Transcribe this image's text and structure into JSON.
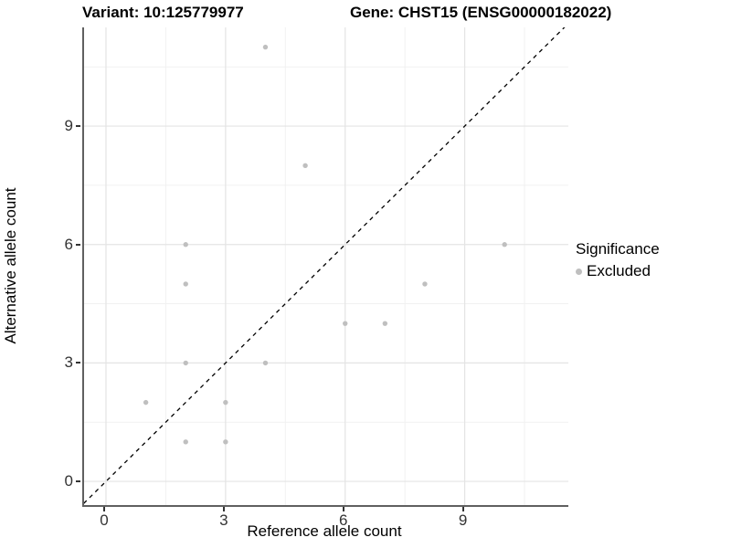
{
  "titles": {
    "variant": "Variant: 10:125779977",
    "gene": "Gene: CHST15 (ENSG00000182022)"
  },
  "chart_data": {
    "type": "scatter",
    "title": "Variant: 10:125779977  Gene: CHST15 (ENSG00000182022)",
    "xlabel": "Reference allele count",
    "ylabel": "Alternative allele count",
    "points": [
      {
        "x": 1,
        "y": 2,
        "series": "Excluded"
      },
      {
        "x": 2,
        "y": 1,
        "series": "Excluded"
      },
      {
        "x": 2,
        "y": 3,
        "series": "Excluded"
      },
      {
        "x": 2,
        "y": 5,
        "series": "Excluded"
      },
      {
        "x": 2,
        "y": 6,
        "series": "Excluded"
      },
      {
        "x": 3,
        "y": 1,
        "series": "Excluded"
      },
      {
        "x": 3,
        "y": 2,
        "series": "Excluded"
      },
      {
        "x": 4,
        "y": 3,
        "series": "Excluded"
      },
      {
        "x": 4,
        "y": 11,
        "series": "Excluded"
      },
      {
        "x": 5,
        "y": 8,
        "series": "Excluded"
      },
      {
        "x": 6,
        "y": 4,
        "series": "Excluded"
      },
      {
        "x": 7,
        "y": 4,
        "series": "Excluded"
      },
      {
        "x": 8,
        "y": 5,
        "series": "Excluded"
      },
      {
        "x": 10,
        "y": 6,
        "series": "Excluded"
      }
    ],
    "x_ticks": [
      0,
      3,
      6,
      9
    ],
    "y_ticks": [
      0,
      3,
      6,
      9
    ],
    "x_minor_gridlines": [
      1.5,
      4.5,
      7.5,
      10.5
    ],
    "y_minor_gridlines": [
      1.5,
      4.5,
      7.5,
      10.5
    ],
    "xlim": [
      -0.55,
      11.6
    ],
    "ylim": [
      -0.6,
      11.5
    ],
    "grid": "on",
    "identity_line": {
      "type": "y=x",
      "style": "dashed",
      "color": "#000000"
    },
    "legend": {
      "position": "right",
      "title": "Significance",
      "items": [
        {
          "label": "Excluded",
          "color": "#bfbfbf"
        }
      ]
    },
    "colors": {
      "point": "#bfbfbf",
      "grid_major": "#e4e4e4",
      "grid_minor": "#f1f1f1",
      "axis_line": "#606060",
      "tick": "#333333"
    }
  }
}
